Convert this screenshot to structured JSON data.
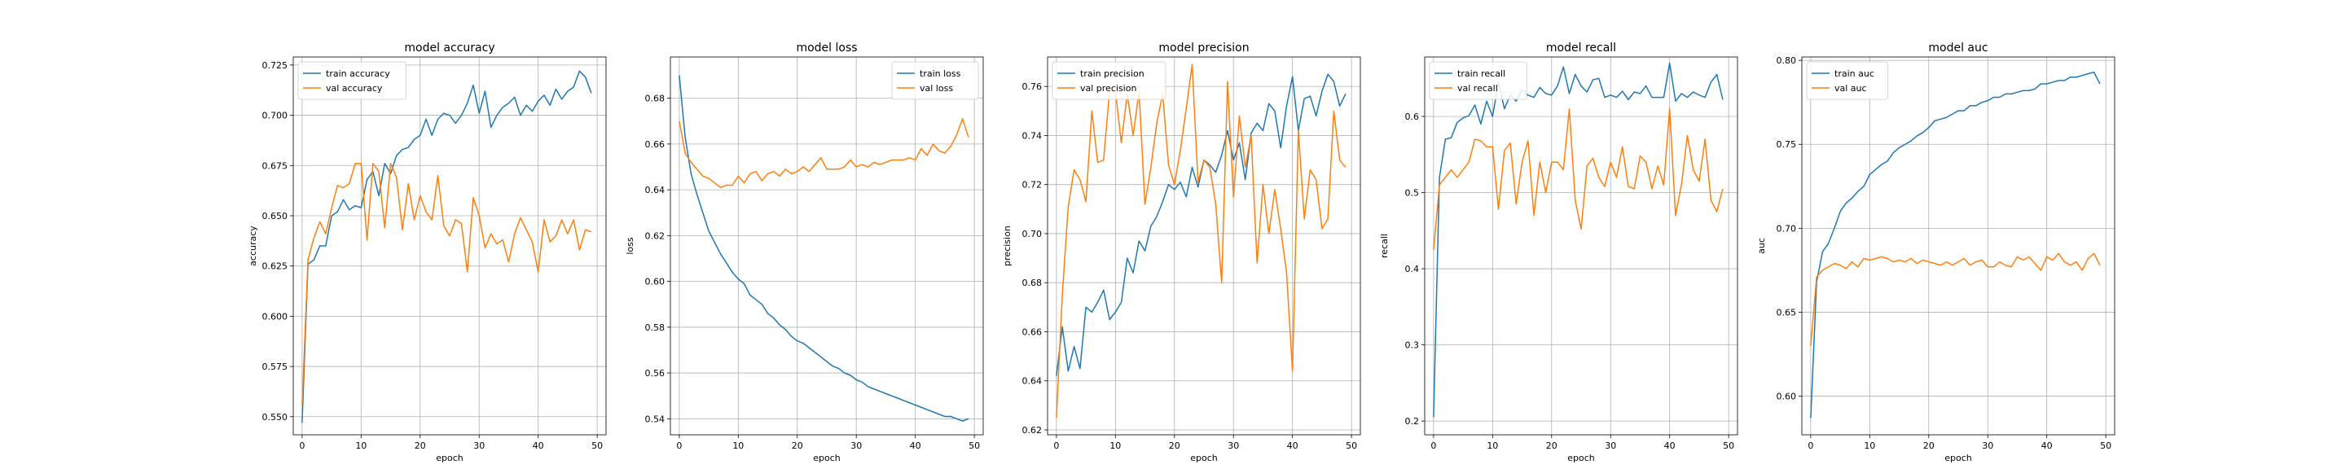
{
  "chart_data": [
    {
      "type": "line",
      "title": "model accuracy",
      "xlabel": "epoch",
      "ylabel": "accuracy",
      "xlim": [
        -1.5,
        51.5
      ],
      "ylim": [
        0.541,
        0.729
      ],
      "xticks": [
        0,
        10,
        20,
        30,
        40,
        50
      ],
      "yticks": [
        0.55,
        0.575,
        0.6,
        0.625,
        0.65,
        0.675,
        0.7,
        0.725
      ],
      "ytick_decimals": 3,
      "grid": true,
      "legend_loc": "upper-left",
      "series": [
        {
          "name": "train accuracy",
          "color": "#1f77b4",
          "values": [
            0.547,
            0.626,
            0.628,
            0.635,
            0.635,
            0.65,
            0.652,
            0.658,
            0.653,
            0.655,
            0.654,
            0.668,
            0.672,
            0.66,
            0.676,
            0.671,
            0.68,
            0.683,
            0.684,
            0.688,
            0.69,
            0.698,
            0.69,
            0.698,
            0.701,
            0.7,
            0.696,
            0.7,
            0.706,
            0.715,
            0.701,
            0.712,
            0.694,
            0.7,
            0.704,
            0.706,
            0.709,
            0.7,
            0.705,
            0.702,
            0.707,
            0.71,
            0.705,
            0.713,
            0.708,
            0.712,
            0.714,
            0.722,
            0.719,
            0.711
          ]
        },
        {
          "name": "val accuracy",
          "color": "#ff7f0e",
          "values": [
            0.556,
            0.628,
            0.639,
            0.647,
            0.641,
            0.654,
            0.665,
            0.664,
            0.666,
            0.676,
            0.676,
            0.638,
            0.676,
            0.672,
            0.644,
            0.676,
            0.669,
            0.643,
            0.666,
            0.648,
            0.66,
            0.652,
            0.648,
            0.67,
            0.645,
            0.64,
            0.648,
            0.646,
            0.622,
            0.659,
            0.65,
            0.634,
            0.641,
            0.636,
            0.638,
            0.627,
            0.641,
            0.649,
            0.643,
            0.637,
            0.622,
            0.648,
            0.637,
            0.64,
            0.648,
            0.641,
            0.648,
            0.633,
            0.643,
            0.642
          ]
        }
      ]
    },
    {
      "type": "line",
      "title": "model loss",
      "xlabel": "epoch",
      "ylabel": "loss",
      "xlim": [
        -1.5,
        51.5
      ],
      "ylim": [
        0.533,
        0.698
      ],
      "xticks": [
        0,
        10,
        20,
        30,
        40,
        50
      ],
      "yticks": [
        0.54,
        0.56,
        0.58,
        0.6,
        0.62,
        0.64,
        0.66,
        0.68
      ],
      "ytick_decimals": 2,
      "grid": true,
      "legend_loc": "upper-right",
      "series": [
        {
          "name": "train loss",
          "color": "#1f77b4",
          "values": [
            0.69,
            0.663,
            0.647,
            0.638,
            0.63,
            0.622,
            0.617,
            0.612,
            0.608,
            0.604,
            0.601,
            0.599,
            0.594,
            0.592,
            0.59,
            0.586,
            0.584,
            0.581,
            0.579,
            0.576,
            0.574,
            0.573,
            0.571,
            0.569,
            0.567,
            0.565,
            0.563,
            0.562,
            0.56,
            0.559,
            0.557,
            0.556,
            0.554,
            0.553,
            0.552,
            0.551,
            0.55,
            0.549,
            0.548,
            0.547,
            0.546,
            0.545,
            0.544,
            0.543,
            0.542,
            0.541,
            0.541,
            0.54,
            0.539,
            0.54
          ]
        },
        {
          "name": "val loss",
          "color": "#ff7f0e",
          "values": [
            0.67,
            0.656,
            0.652,
            0.649,
            0.646,
            0.645,
            0.643,
            0.641,
            0.642,
            0.642,
            0.646,
            0.643,
            0.647,
            0.648,
            0.644,
            0.647,
            0.648,
            0.646,
            0.649,
            0.647,
            0.648,
            0.65,
            0.648,
            0.651,
            0.654,
            0.649,
            0.649,
            0.649,
            0.65,
            0.653,
            0.65,
            0.651,
            0.65,
            0.652,
            0.651,
            0.652,
            0.653,
            0.653,
            0.653,
            0.654,
            0.653,
            0.658,
            0.655,
            0.66,
            0.657,
            0.656,
            0.659,
            0.664,
            0.671,
            0.663
          ]
        }
      ]
    },
    {
      "type": "line",
      "title": "model precision",
      "xlabel": "epoch",
      "ylabel": "precision",
      "xlim": [
        -1.5,
        51.5
      ],
      "ylim": [
        0.618,
        0.772
      ],
      "xticks": [
        0,
        10,
        20,
        30,
        40,
        50
      ],
      "yticks": [
        0.62,
        0.64,
        0.66,
        0.68,
        0.7,
        0.72,
        0.74,
        0.76
      ],
      "ytick_decimals": 2,
      "grid": true,
      "legend_loc": "upper-left",
      "series": [
        {
          "name": "train precision",
          "color": "#1f77b4",
          "values": [
            0.642,
            0.662,
            0.644,
            0.654,
            0.645,
            0.67,
            0.668,
            0.672,
            0.677,
            0.665,
            0.668,
            0.672,
            0.69,
            0.684,
            0.697,
            0.693,
            0.703,
            0.707,
            0.713,
            0.72,
            0.718,
            0.721,
            0.715,
            0.727,
            0.719,
            0.73,
            0.728,
            0.725,
            0.732,
            0.742,
            0.73,
            0.737,
            0.722,
            0.741,
            0.745,
            0.742,
            0.753,
            0.75,
            0.735,
            0.752,
            0.764,
            0.742,
            0.755,
            0.756,
            0.748,
            0.758,
            0.765,
            0.762,
            0.752,
            0.757
          ]
        },
        {
          "name": "val precision",
          "color": "#ff7f0e",
          "values": [
            0.625,
            0.675,
            0.711,
            0.726,
            0.722,
            0.713,
            0.75,
            0.729,
            0.73,
            0.758,
            0.758,
            0.737,
            0.757,
            0.74,
            0.758,
            0.712,
            0.727,
            0.745,
            0.757,
            0.728,
            0.72,
            0.734,
            0.751,
            0.769,
            0.721,
            0.73,
            0.727,
            0.712,
            0.68,
            0.762,
            0.715,
            0.748,
            0.727,
            0.74,
            0.688,
            0.72,
            0.7,
            0.718,
            0.702,
            0.684,
            0.644,
            0.742,
            0.706,
            0.726,
            0.722,
            0.702,
            0.706,
            0.75,
            0.73,
            0.727
          ]
        }
      ]
    },
    {
      "type": "line",
      "title": "model recall",
      "xlabel": "epoch",
      "ylabel": "recall",
      "xlim": [
        -1.5,
        51.5
      ],
      "ylim": [
        0.182,
        0.678
      ],
      "xticks": [
        0,
        10,
        20,
        30,
        40,
        50
      ],
      "yticks": [
        0.2,
        0.3,
        0.4,
        0.5,
        0.6
      ],
      "ytick_decimals": 1,
      "grid": true,
      "legend_loc": "upper-left",
      "series": [
        {
          "name": "train recall",
          "color": "#1f77b4",
          "values": [
            0.205,
            0.52,
            0.57,
            0.572,
            0.592,
            0.598,
            0.601,
            0.615,
            0.59,
            0.62,
            0.6,
            0.645,
            0.61,
            0.628,
            0.62,
            0.635,
            0.628,
            0.625,
            0.638,
            0.63,
            0.628,
            0.64,
            0.665,
            0.63,
            0.655,
            0.64,
            0.632,
            0.648,
            0.65,
            0.625,
            0.628,
            0.625,
            0.633,
            0.622,
            0.632,
            0.63,
            0.64,
            0.625,
            0.625,
            0.625,
            0.67,
            0.62,
            0.63,
            0.625,
            0.632,
            0.628,
            0.625,
            0.645,
            0.655,
            0.622
          ]
        },
        {
          "name": "val recall",
          "color": "#ff7f0e",
          "values": [
            0.425,
            0.51,
            0.52,
            0.53,
            0.52,
            0.53,
            0.54,
            0.57,
            0.568,
            0.56,
            0.56,
            0.478,
            0.555,
            0.565,
            0.485,
            0.54,
            0.568,
            0.47,
            0.54,
            0.5,
            0.54,
            0.54,
            0.53,
            0.61,
            0.49,
            0.452,
            0.535,
            0.545,
            0.52,
            0.508,
            0.54,
            0.52,
            0.56,
            0.508,
            0.505,
            0.548,
            0.54,
            0.505,
            0.535,
            0.51,
            0.61,
            0.47,
            0.51,
            0.575,
            0.53,
            0.515,
            0.57,
            0.49,
            0.475,
            0.505
          ]
        }
      ]
    },
    {
      "type": "line",
      "title": "model auc",
      "xlabel": "epoch",
      "ylabel": "auc",
      "xlim": [
        -1.5,
        51.5
      ],
      "ylim": [
        0.577,
        0.802
      ],
      "xticks": [
        0,
        10,
        20,
        30,
        40,
        50
      ],
      "yticks": [
        0.6,
        0.65,
        0.7,
        0.75,
        0.8
      ],
      "ytick_decimals": 2,
      "grid": true,
      "legend_loc": "upper-left",
      "series": [
        {
          "name": "train auc",
          "color": "#1f77b4",
          "values": [
            0.587,
            0.668,
            0.686,
            0.691,
            0.7,
            0.71,
            0.715,
            0.718,
            0.722,
            0.725,
            0.732,
            0.735,
            0.738,
            0.74,
            0.745,
            0.748,
            0.75,
            0.752,
            0.755,
            0.757,
            0.76,
            0.764,
            0.765,
            0.766,
            0.768,
            0.77,
            0.77,
            0.773,
            0.773,
            0.775,
            0.776,
            0.778,
            0.778,
            0.78,
            0.78,
            0.781,
            0.782,
            0.782,
            0.783,
            0.786,
            0.786,
            0.787,
            0.788,
            0.788,
            0.79,
            0.79,
            0.791,
            0.792,
            0.793,
            0.786
          ]
        },
        {
          "name": "val auc",
          "color": "#ff7f0e",
          "values": [
            0.63,
            0.671,
            0.675,
            0.677,
            0.679,
            0.678,
            0.676,
            0.68,
            0.677,
            0.682,
            0.681,
            0.682,
            0.683,
            0.682,
            0.68,
            0.681,
            0.68,
            0.682,
            0.679,
            0.681,
            0.68,
            0.679,
            0.678,
            0.68,
            0.678,
            0.68,
            0.682,
            0.678,
            0.68,
            0.681,
            0.677,
            0.677,
            0.68,
            0.678,
            0.677,
            0.683,
            0.681,
            0.683,
            0.679,
            0.675,
            0.683,
            0.681,
            0.685,
            0.68,
            0.678,
            0.68,
            0.675,
            0.682,
            0.685,
            0.678
          ]
        }
      ]
    }
  ]
}
